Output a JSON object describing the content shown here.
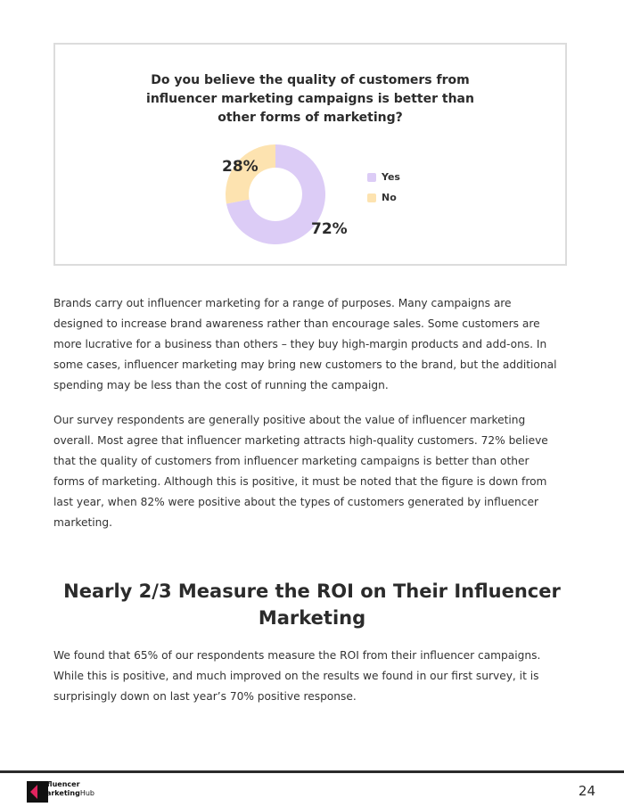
{
  "chart_data": {
    "type": "pie",
    "donut": true,
    "title_lines": [
      "Do you believe the quality of customers from",
      "influencer marketing campaigns is better than",
      "other forms of marketing?"
    ],
    "categories": [
      "Yes",
      "No"
    ],
    "values": [
      72,
      28
    ],
    "value_labels": [
      "72%",
      "28%"
    ],
    "colors": [
      "#dcccf6",
      "#fde3b0"
    ],
    "legend_position": "right"
  },
  "paragraphs": {
    "p1": [
      "Brands carry out influencer marketing for a range of purposes. Many campaigns are",
      "designed to increase brand awareness rather than encourage sales. Some customers are",
      "more lucrative for a business than others – they buy high-margin products and add-ons. In",
      "some cases, influencer marketing may bring new customers to the brand, but the additional",
      "spending may be less than the cost of running the campaign."
    ],
    "p2": [
      "Our survey respondents are generally positive about the value of influencer marketing",
      "overall. Most agree that influencer marketing attracts high-quality customers. 72% believe",
      "that the quality of customers from influencer marketing campaigns is better than other",
      "forms of marketing. Although this is positive, it must be noted that the figure is down from",
      "last year, when 82% were positive about the types of customers generated by influencer",
      "marketing."
    ],
    "p3": [
      "We found that 65% of our respondents measure the ROI from their influencer campaigns.",
      "While this is positive, and much improved on the results we found in our first survey, it is",
      "surprisingly down on last year’s 70% positive response."
    ]
  },
  "heading_lines": [
    "Nearly 2/3 Measure the ROI on Their Influencer",
    "Marketing"
  ],
  "footer": {
    "logo_line1": "Influencer",
    "logo_line2a": "Marketing",
    "logo_line2b": "Hub",
    "logo_colors": [
      "#e0245e",
      "#111111"
    ],
    "page_number": "24"
  }
}
